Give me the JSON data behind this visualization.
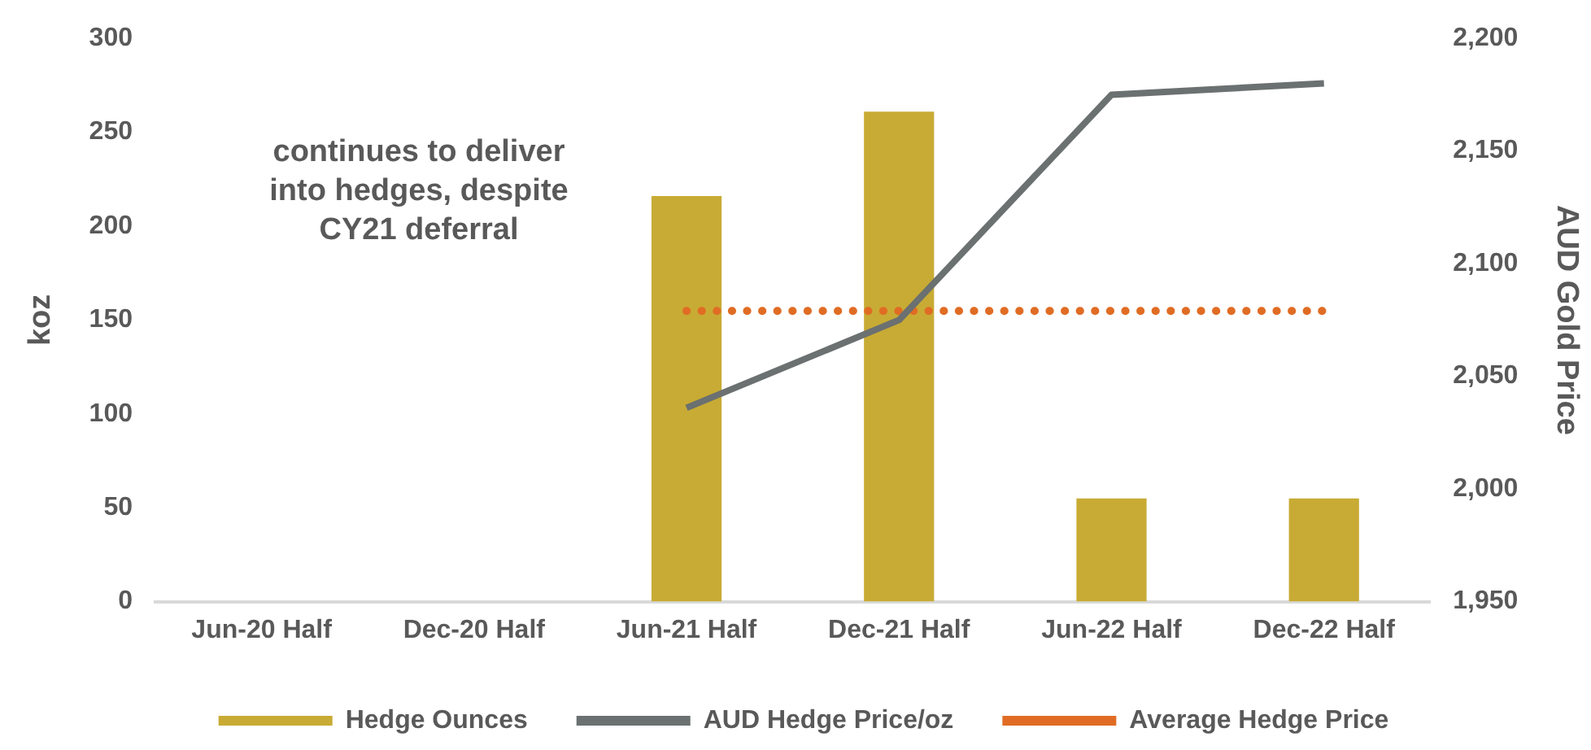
{
  "chart_data": {
    "type": "bar",
    "categories": [
      "Jun-20 Half",
      "Dec-20 Half",
      "Jun-21 Half",
      "Dec-21 Half",
      "Jun-22 Half",
      "Dec-22 Half"
    ],
    "series": [
      {
        "name": "Hedge Ounces",
        "color": "#c8ab34",
        "values": [
          0,
          0,
          216,
          261,
          55,
          55
        ]
      },
      {
        "name": "AUD Hedge Price/oz",
        "type": "line",
        "axis": "y2",
        "color": "#6b7070",
        "line_style": "solid",
        "values": [
          null,
          null,
          2036,
          2075,
          2175,
          2180
        ]
      },
      {
        "name": "Average Hedge Price",
        "type": "line",
        "axis": "y2",
        "color": "#e06c24",
        "line_style": "dotted",
        "values": [
          null,
          null,
          2079,
          2079,
          2079,
          2079
        ]
      }
    ],
    "ylabel": "koz",
    "y2label": "AUD Gold Price",
    "ylim": [
      0,
      300
    ],
    "yticks": [
      0,
      50,
      100,
      150,
      200,
      250,
      300
    ],
    "y2lim": [
      1950,
      2200
    ],
    "y2ticks": [
      {
        "value": 1950,
        "label": "1,950"
      },
      {
        "value": 2000,
        "label": "2,000"
      },
      {
        "value": 2050,
        "label": "2,050"
      },
      {
        "value": 2100,
        "label": "2,100"
      },
      {
        "value": 2150,
        "label": "2,150"
      },
      {
        "value": 2200,
        "label": "2,200"
      }
    ],
    "annotations": [
      "continues to deliver into hedges, despite CY21 deferral"
    ],
    "grid": false,
    "legend": "bottom",
    "marker": "none"
  }
}
